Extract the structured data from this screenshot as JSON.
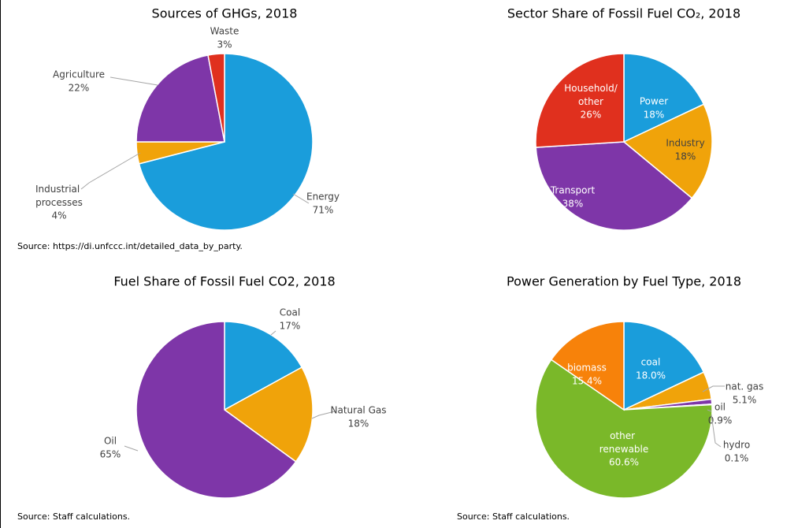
{
  "chart_data": [
    {
      "type": "pie",
      "title": "Sources of GHGs, 2018",
      "categories": [
        "Energy",
        "Industrial processes",
        "Agriculture",
        "Waste"
      ],
      "values": [
        71,
        4,
        22,
        3
      ],
      "value_labels": [
        "71%",
        "4%",
        "22%",
        "3%"
      ],
      "colors": [
        "#1a9ddb",
        "#f0a30a",
        "#7e36a8",
        "#e0301e"
      ],
      "source": "Source: https://di.unfccc.int/detailed_data_by_party."
    },
    {
      "type": "pie",
      "title": "Sector Share of Fossil Fuel CO₂, 2018",
      "categories": [
        "Power",
        "Industry",
        "Transport",
        "Household/other"
      ],
      "values": [
        18,
        18,
        38,
        26
      ],
      "value_labels": [
        "18%",
        "18%",
        "38%",
        "26%"
      ],
      "colors": [
        "#1a9ddb",
        "#f0a30a",
        "#7e36a8",
        "#e0301e"
      ]
    },
    {
      "type": "pie",
      "title": "Fuel Share of Fossil Fuel CO2, 2018",
      "categories": [
        "Coal",
        "Natural Gas",
        "Oil"
      ],
      "values": [
        17,
        18,
        65
      ],
      "value_labels": [
        "17%",
        "18%",
        "65%"
      ],
      "colors": [
        "#1a9ddb",
        "#f0a30a",
        "#7e36a8"
      ],
      "source": "Source: Staff calculations."
    },
    {
      "type": "pie",
      "title": "Power Generation by Fuel Type, 2018",
      "categories": [
        "coal",
        "nat. gas",
        "oil",
        "hydro",
        "other renewable",
        "biomass"
      ],
      "values": [
        18.0,
        5.1,
        0.9,
        0.1,
        60.6,
        15.4
      ],
      "value_labels": [
        "18.0%",
        "5.1%",
        "0.9%",
        "0.1%",
        "60.6%",
        "15.4%"
      ],
      "colors": [
        "#1a9ddb",
        "#f0a30a",
        "#7e36a8",
        "#1a9ddb",
        "#7ab829",
        "#f7820a"
      ],
      "source": "Source: Staff calculations."
    }
  ]
}
